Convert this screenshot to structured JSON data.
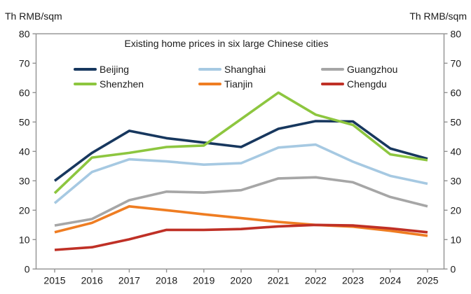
{
  "chart_data": {
    "type": "line",
    "title": "Existing home prices in six large Chinese cities",
    "left_axis_unit": "Th RMB/sqm",
    "right_axis_unit": "Th RMB/sqm",
    "x": [
      2015,
      2016,
      2017,
      2018,
      2019,
      2020,
      2021,
      2022,
      2023,
      2024,
      2025
    ],
    "ylim": [
      0,
      80
    ],
    "yticks": [
      0,
      10,
      20,
      30,
      40,
      50,
      60,
      70,
      80
    ],
    "grid": false,
    "legend_position": "inside-top, two rows of three",
    "axis_color": "#929292",
    "text_color": "#1a1a1a",
    "series": [
      {
        "name": "Beijing",
        "color": "#17375e",
        "values": [
          30,
          39.5,
          47,
          44.5,
          43,
          41.5,
          47.7,
          50.3,
          50.2,
          41,
          37.5
        ]
      },
      {
        "name": "Shanghai",
        "color": "#a6c9e2",
        "values": [
          22.4,
          33,
          37.3,
          36.6,
          35.5,
          36,
          41.3,
          42.3,
          36.5,
          31.7,
          29
        ]
      },
      {
        "name": "Guangzhou",
        "color": "#a6a6a6",
        "values": [
          14.8,
          17,
          23.4,
          26.3,
          26,
          26.8,
          30.8,
          31.2,
          29.5,
          24.5,
          21.3
        ]
      },
      {
        "name": "Shenzhen",
        "color": "#8dc63f",
        "values": [
          25.8,
          37.9,
          39.5,
          41.5,
          42,
          51,
          60,
          52.5,
          49,
          39,
          37
        ]
      },
      {
        "name": "Tianjin",
        "color": "#ef7d22",
        "values": [
          12.5,
          15.7,
          21.3,
          20,
          18.6,
          17.3,
          16,
          15,
          14.4,
          13,
          11.3
        ]
      },
      {
        "name": "Chengdu",
        "color": "#bf3026",
        "values": [
          6.5,
          7.4,
          10.1,
          13.3,
          13.3,
          13.6,
          14.5,
          15,
          14.8,
          13.8,
          12.5
        ]
      }
    ]
  }
}
